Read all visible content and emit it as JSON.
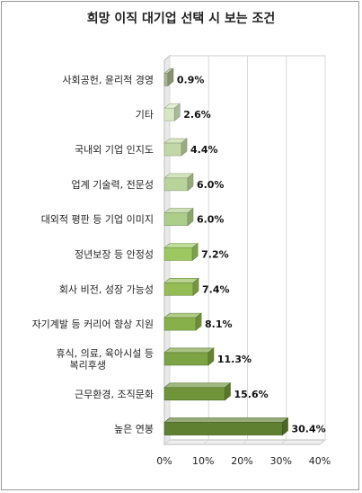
{
  "chart_data": {
    "type": "bar",
    "orientation": "horizontal",
    "title": "희망 이직 대기업 선택 시 보는 조건",
    "categories": [
      "사회공헌, 윤리적 경영",
      "기타",
      "국내외 기업 인지도",
      "업계 기술력, 전문성",
      "대외적 평판 등 기업 이미지",
      "정년보장 등 안정성",
      "회사 비전, 성장 가능성",
      "자기계발 등 커리어 향상 지원",
      "휴식, 의료, 육아시설 등\n복리후생",
      "근무환경, 조직문화",
      "높은 연봉"
    ],
    "values": [
      0.9,
      2.6,
      4.4,
      6.0,
      6.0,
      7.2,
      7.4,
      8.1,
      11.3,
      15.6,
      30.4
    ],
    "value_labels": [
      "0.9%",
      "2.6%",
      "4.4%",
      "6.0%",
      "6.0%",
      "7.2%",
      "7.4%",
      "8.1%",
      "11.3%",
      "15.6%",
      "30.4%"
    ],
    "bar_colors": [
      "#a7b58e",
      "#d6e7c2",
      "#c2d7a6",
      "#b9d49a",
      "#adcd8a",
      "#9dc761",
      "#93bc55",
      "#87b04a",
      "#7ca344",
      "#6f943a",
      "#5f7f31"
    ],
    "xlim": [
      0,
      40
    ],
    "xticks": [
      0,
      10,
      20,
      30,
      40
    ],
    "xtick_labels": [
      "0%",
      "10%",
      "20%",
      "30%",
      "40%"
    ],
    "grid": true,
    "xlabel": "",
    "ylabel": ""
  }
}
